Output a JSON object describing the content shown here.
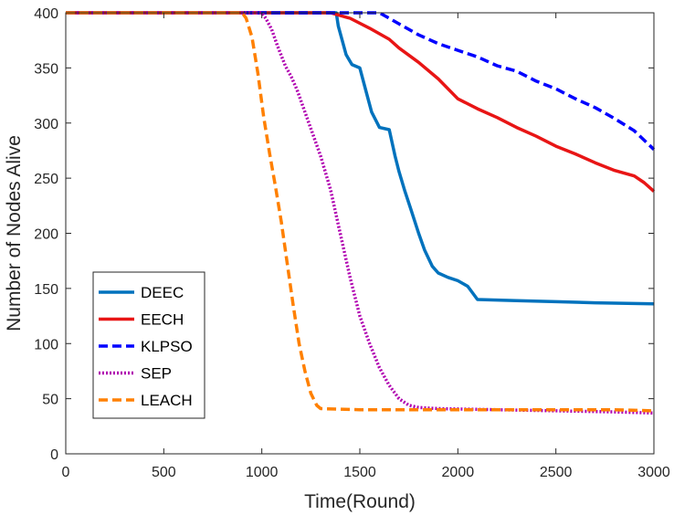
{
  "chart_data": {
    "type": "line",
    "title": "",
    "xlabel": "Time(Round)",
    "ylabel": "Number of Nodes Alive",
    "xlim": [
      0,
      3000
    ],
    "ylim": [
      0,
      400
    ],
    "xticks": [
      "0",
      "500",
      "1000",
      "1500",
      "2000",
      "2500",
      "3000"
    ],
    "yticks": [
      "0",
      "50",
      "100",
      "150",
      "200",
      "250",
      "300",
      "350",
      "400"
    ],
    "grid": false,
    "legend_position": "lower-left",
    "series": [
      {
        "name": "DEEC",
        "color": "#0072BD",
        "style": "solid",
        "points": [
          [
            0,
            400
          ],
          [
            1380,
            400
          ],
          [
            1390,
            388
          ],
          [
            1410,
            375
          ],
          [
            1430,
            362
          ],
          [
            1460,
            353
          ],
          [
            1500,
            350
          ],
          [
            1530,
            330
          ],
          [
            1560,
            310
          ],
          [
            1600,
            296
          ],
          [
            1650,
            294
          ],
          [
            1680,
            270
          ],
          [
            1700,
            256
          ],
          [
            1730,
            238
          ],
          [
            1760,
            222
          ],
          [
            1800,
            200
          ],
          [
            1830,
            185
          ],
          [
            1870,
            170
          ],
          [
            1900,
            164
          ],
          [
            1950,
            160
          ],
          [
            2000,
            157
          ],
          [
            2050,
            152
          ],
          [
            2100,
            140
          ],
          [
            2300,
            139
          ],
          [
            2500,
            138
          ],
          [
            2700,
            137
          ],
          [
            3000,
            136
          ]
        ]
      },
      {
        "name": "EECH",
        "color": "#E81515",
        "style": "solid",
        "points": [
          [
            0,
            400
          ],
          [
            1350,
            400
          ],
          [
            1450,
            395
          ],
          [
            1550,
            386
          ],
          [
            1650,
            376
          ],
          [
            1700,
            368
          ],
          [
            1800,
            355
          ],
          [
            1900,
            340
          ],
          [
            2000,
            322
          ],
          [
            2100,
            313
          ],
          [
            2200,
            305
          ],
          [
            2300,
            296
          ],
          [
            2400,
            288
          ],
          [
            2500,
            279
          ],
          [
            2600,
            272
          ],
          [
            2700,
            264
          ],
          [
            2800,
            257
          ],
          [
            2900,
            252
          ],
          [
            2950,
            246
          ],
          [
            3000,
            238
          ]
        ]
      },
      {
        "name": "KLPSO",
        "color": "#0000FF",
        "style": "dashed",
        "points": [
          [
            0,
            400
          ],
          [
            1600,
            400
          ],
          [
            1700,
            390
          ],
          [
            1800,
            380
          ],
          [
            1900,
            372
          ],
          [
            2000,
            366
          ],
          [
            2100,
            360
          ],
          [
            2200,
            352
          ],
          [
            2300,
            347
          ],
          [
            2400,
            338
          ],
          [
            2500,
            331
          ],
          [
            2600,
            322
          ],
          [
            2700,
            314
          ],
          [
            2800,
            304
          ],
          [
            2900,
            293
          ],
          [
            3000,
            276
          ]
        ]
      },
      {
        "name": "SEP",
        "color": "#B000B0",
        "style": "dotted",
        "points": [
          [
            0,
            400
          ],
          [
            1000,
            400
          ],
          [
            1020,
            395
          ],
          [
            1050,
            385
          ],
          [
            1080,
            370
          ],
          [
            1120,
            352
          ],
          [
            1150,
            342
          ],
          [
            1180,
            330
          ],
          [
            1220,
            310
          ],
          [
            1260,
            290
          ],
          [
            1300,
            270
          ],
          [
            1350,
            240
          ],
          [
            1400,
            200
          ],
          [
            1450,
            160
          ],
          [
            1500,
            125
          ],
          [
            1550,
            100
          ],
          [
            1600,
            78
          ],
          [
            1650,
            62
          ],
          [
            1700,
            50
          ],
          [
            1750,
            44
          ],
          [
            1800,
            42
          ],
          [
            1900,
            41
          ],
          [
            2200,
            40
          ],
          [
            2500,
            39
          ],
          [
            2800,
            38
          ],
          [
            3000,
            37
          ]
        ]
      },
      {
        "name": "LEACH",
        "color": "#FF8000",
        "style": "dashed",
        "points": [
          [
            0,
            400
          ],
          [
            900,
            400
          ],
          [
            920,
            395
          ],
          [
            950,
            378
          ],
          [
            980,
            345
          ],
          [
            1010,
            305
          ],
          [
            1040,
            272
          ],
          [
            1070,
            242
          ],
          [
            1100,
            210
          ],
          [
            1130,
            172
          ],
          [
            1160,
            135
          ],
          [
            1190,
            100
          ],
          [
            1220,
            75
          ],
          [
            1250,
            55
          ],
          [
            1280,
            44
          ],
          [
            1300,
            41
          ],
          [
            1500,
            40
          ],
          [
            2000,
            40
          ],
          [
            2500,
            40
          ],
          [
            2800,
            40
          ],
          [
            3000,
            39
          ]
        ]
      }
    ]
  }
}
